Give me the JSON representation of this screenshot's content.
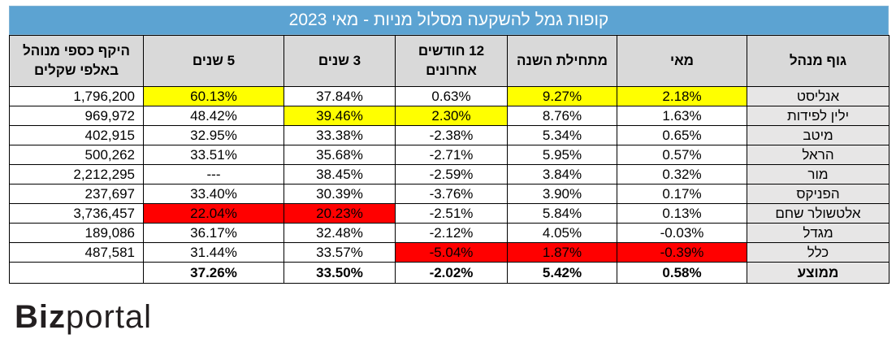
{
  "title": "קופות גמל להשקעה מסלול מניות - מאי 2023",
  "headers": {
    "aum": "היקף כספי מנוהל באלפי שקלים",
    "y5": "5 שנים",
    "y3": "3 שנים",
    "m12": "12 חודשים אחרונים",
    "ytd": "מתחילת השנה",
    "may": "מאי",
    "manager": "גוף מנהל"
  },
  "rows": [
    {
      "manager": "אנליסט",
      "may": "2.18%",
      "ytd": "9.27%",
      "m12": "0.63%",
      "y3": "37.84%",
      "y5": "60.13%",
      "aum": "1,796,200"
    },
    {
      "manager": "ילין לפידות",
      "may": "1.63%",
      "ytd": "8.76%",
      "m12": "2.30%",
      "y3": "39.46%",
      "y5": "48.42%",
      "aum": "969,972"
    },
    {
      "manager": "מיטב",
      "may": "0.65%",
      "ytd": "5.34%",
      "m12": "-2.38%",
      "y3": "33.38%",
      "y5": "32.95%",
      "aum": "402,915"
    },
    {
      "manager": "הראל",
      "may": "0.57%",
      "ytd": "5.95%",
      "m12": "-2.71%",
      "y3": "35.68%",
      "y5": "33.51%",
      "aum": "500,262"
    },
    {
      "manager": "מור",
      "may": "0.32%",
      "ytd": "3.84%",
      "m12": "-2.59%",
      "y3": "38.45%",
      "y5": "---",
      "aum": "2,212,295"
    },
    {
      "manager": "הפניקס",
      "may": "0.17%",
      "ytd": "3.90%",
      "m12": "-3.76%",
      "y3": "30.39%",
      "y5": "33.40%",
      "aum": "237,697"
    },
    {
      "manager": "אלטשולר שחם",
      "may": "0.13%",
      "ytd": "5.84%",
      "m12": "-2.51%",
      "y3": "20.23%",
      "y5": "22.04%",
      "aum": "3,736,457"
    },
    {
      "manager": "מגדל",
      "may": "-0.03%",
      "ytd": "4.05%",
      "m12": "-2.12%",
      "y3": "32.48%",
      "y5": "36.17%",
      "aum": "189,086"
    },
    {
      "manager": "כלל",
      "may": "-0.39%",
      "ytd": "1.87%",
      "m12": "-5.04%",
      "y3": "33.57%",
      "y5": "31.44%",
      "aum": "487,581"
    }
  ],
  "average": {
    "manager": "ממוצע",
    "may": "0.58%",
    "ytd": "5.42%",
    "m12": "-2.02%",
    "y3": "33.50%",
    "y5": "37.26%",
    "aum": ""
  },
  "highlights": {
    "yellow": [
      "0.may",
      "0.ytd",
      "0.y5",
      "1.m12",
      "1.y3"
    ],
    "red": [
      "6.y3",
      "6.y5",
      "8.may",
      "8.ytd",
      "8.m12"
    ]
  },
  "colors": {
    "title_bg": "#5ca3d2",
    "header_bg": "#d9d9d9",
    "manager_bg": "#e7e6e6",
    "yellow": "#ffff00",
    "red": "#ff0000"
  },
  "logo": {
    "part1": "Biz",
    "part2": "portal"
  }
}
